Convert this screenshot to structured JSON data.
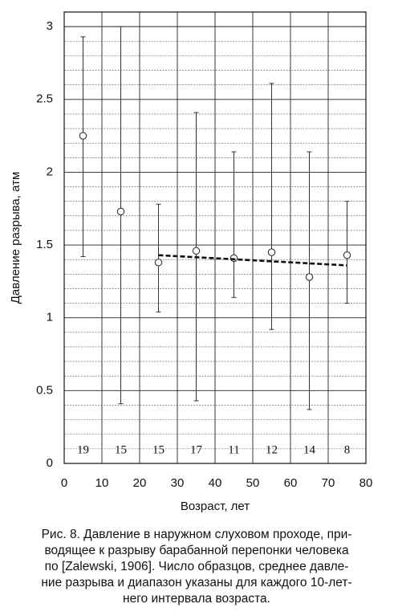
{
  "chart_data": {
    "type": "errorbar",
    "ylabel": "Давление разрыва, атм",
    "xlabel": "Возраст, лет",
    "x": [
      5,
      15,
      25,
      35,
      45,
      55,
      65,
      75
    ],
    "values": [
      2.25,
      1.73,
      1.38,
      1.46,
      1.41,
      1.45,
      1.28,
      1.43
    ],
    "min": [
      1.42,
      0.41,
      1.04,
      0.43,
      1.14,
      0.92,
      0.37,
      1.1
    ],
    "max": [
      2.93,
      3.0,
      1.78,
      2.41,
      2.14,
      2.61,
      2.14,
      1.8
    ],
    "counts": [
      19,
      15,
      15,
      17,
      11,
      12,
      14,
      8
    ],
    "trend": {
      "x": [
        25,
        75
      ],
      "values": [
        1.43,
        1.36
      ]
    },
    "xlim": [
      0,
      80
    ],
    "ylim": [
      0,
      3.1
    ],
    "xticks": [
      0,
      10,
      20,
      30,
      40,
      50,
      60,
      70,
      80
    ],
    "yticks": [
      0,
      0.5,
      1,
      1.5,
      2,
      2.5,
      3
    ],
    "grid": true,
    "color": "#333333"
  },
  "caption": [
    "Рис. 8. Давление в наружном слуховом проходе, при-",
    "водящее к разрыву барабанной перепонки человека",
    "по [Zalewski, 1906]. Число образцов, среднее давле-",
    "ние разрыва и диапазон указаны для каждого 10-лет-",
    "него интервала возраста."
  ]
}
